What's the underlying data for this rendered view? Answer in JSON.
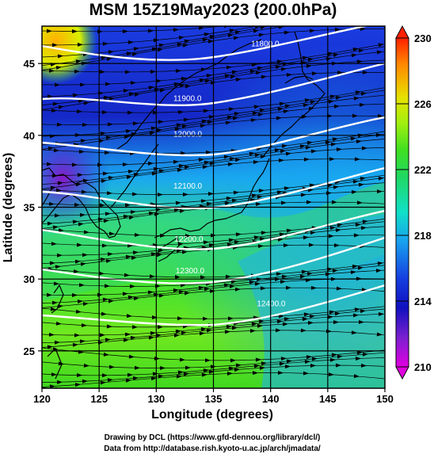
{
  "chart_data": {
    "type": "heatmap",
    "title": "MSM 15Z19May2023 (200.0hPa)",
    "xlabel": "Longitude (degrees)",
    "ylabel": "Latitude  (degrees)",
    "xlim": [
      120,
      150
    ],
    "ylim": [
      22.4,
      47.6
    ],
    "xticks": [
      120,
      125,
      130,
      135,
      140,
      145,
      150
    ],
    "yticks": [
      25,
      30,
      35,
      40,
      45
    ],
    "colorbar": {
      "range": [
        210,
        230
      ],
      "ticks": [
        210,
        214,
        218,
        222,
        226,
        230
      ],
      "colors": [
        "#e000e0",
        "#7a20d0",
        "#1010c0",
        "#1540e0",
        "#18a0f0",
        "#10e0c8",
        "#20d860",
        "#40e020",
        "#a0f010",
        "#e8e000",
        "#ff8800",
        "#ff2000"
      ]
    },
    "contours": {
      "labels": [
        {
          "value": "11800.0",
          "lon": 138.3,
          "lat": 46.2
        },
        {
          "value": "11900.0",
          "lon": 131.5,
          "lat": 42.4
        },
        {
          "value": "12000.0",
          "lon": 131.5,
          "lat": 39.9
        },
        {
          "value": "12100.0",
          "lon": 131.5,
          "lat": 36.3
        },
        {
          "value": "12200.0",
          "lon": 131.6,
          "lat": 32.6
        },
        {
          "value": "12300.0",
          "lon": 131.7,
          "lat": 30.4
        },
        {
          "value": "12400.0",
          "lon": 138.8,
          "lat": 28.1
        }
      ]
    },
    "grid": true
  },
  "footer": {
    "line1": "Drawing by DCL (https://www.gfd-dennou.org/library/dcl/)",
    "line2": "Data from http://database.rish.kyoto-u.ac.jp/arch/jmadata/"
  }
}
